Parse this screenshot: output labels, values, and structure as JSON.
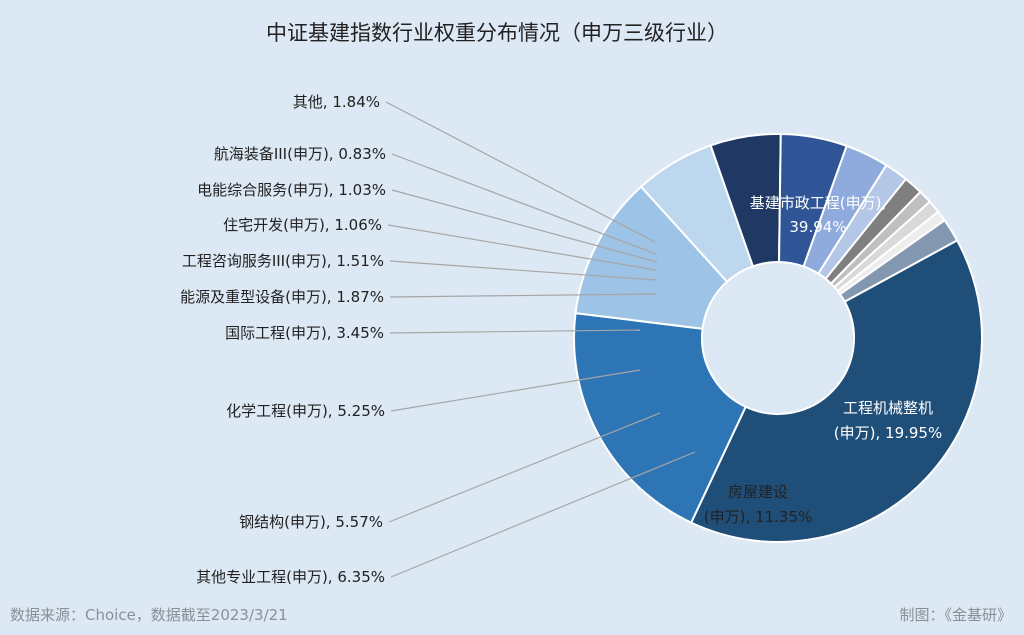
{
  "chart_data": {
    "type": "pie",
    "title": "中证基建指数行业权重分布情况（申万三级行业）",
    "categories": [
      "基建市政工程(申万)",
      "工程机械整机(申万)",
      "房屋建设(申万)",
      "其他专业工程(申万)",
      "钢结构(申万)",
      "化学工程(申万)",
      "国际工程(申万)",
      "能源及重型设备(申万)",
      "工程咨询服务III(申万)",
      "住宅开发(申万)",
      "电能综合服务(申万)",
      "航海装备III(申万)",
      "其他"
    ],
    "values": [
      39.94,
      19.95,
      11.35,
      6.35,
      5.57,
      5.25,
      3.45,
      1.87,
      1.51,
      1.06,
      1.03,
      0.83,
      1.84
    ],
    "labels": [
      [
        "基建市政工程(申万),",
        "39.94%"
      ],
      [
        "工程机械整机",
        "(申万), 19.95%"
      ],
      [
        "房屋建设",
        "(申万), 11.35%"
      ],
      [
        "其他专业工程(申万), 6.35%"
      ],
      [
        "钢结构(申万), 5.57%"
      ],
      [
        "化学工程(申万), 5.25%"
      ],
      [
        "国际工程(申万), 3.45%"
      ],
      [
        "能源及重型设备(申万), 1.87%"
      ],
      [
        "工程咨询服务III(申万), 1.51%"
      ],
      [
        "住宅开发(申万), 1.06%"
      ],
      [
        "电能综合服务(申万), 1.03%"
      ],
      [
        "航海装备III(申万), 0.83%"
      ],
      [
        "其他, 1.84%"
      ]
    ],
    "colors": [
      "#1f4e79",
      "#2e75b6",
      "#9dc3e6",
      "#bdd7ee",
      "#1f3864",
      "#2f5597",
      "#8faadc",
      "#b4c7e7",
      "#7f7f7f",
      "#bfbfbf",
      "#d9d9d9",
      "#ededed",
      "#8497b0"
    ],
    "inner_text_colors": [
      "#ffffff",
      "#ffffff",
      "#222222"
    ]
  },
  "footer": {
    "source": "数据来源：Choice，数据截至2023/3/21",
    "credit": "制图：《金基研》"
  }
}
